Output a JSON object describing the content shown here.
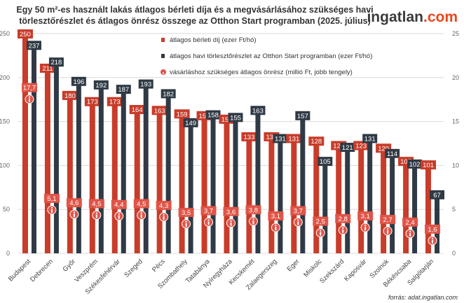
{
  "chart_data": {
    "type": "bar",
    "title_line1": "Egy 50 m²-es használt lakás átlagos bérleti díja és a megvásárlásához szükséges havi",
    "title_line2": "törlesztőrészlet és átlagos önrész összege az Otthon Start programban (2025. július)",
    "brand": {
      "name": "ingatlan",
      "suffix": ".com",
      "color_main": "#3a3a3a",
      "color_accent": "#e8471f"
    },
    "source": "forrás: adat.ingatlan.com",
    "ylim_left": [
      0,
      250
    ],
    "ylim_right": [
      0,
      25
    ],
    "yticks_left": [
      "0",
      "50",
      "100",
      "150",
      "200",
      "250"
    ],
    "yticks_right": [
      "0",
      "5",
      "10",
      "15",
      "20",
      "25"
    ],
    "grid": true,
    "legend_position": "top-right",
    "categories": [
      "Budapest",
      "Debrecen",
      "Győr",
      "Veszprém",
      "Székesfehérvár",
      "Szeged",
      "Pécs",
      "Szombathely",
      "Tatabánya",
      "Nyíregyháza",
      "Kecskemét",
      "Zalaegerszeg",
      "Eger",
      "Miskolc",
      "Szekszárd",
      "Kaposvár",
      "Szolnok",
      "Békéscsaba",
      "Salgótarján"
    ],
    "series": [
      {
        "name": "átlagos bérleti díj (ezer Ft/hó)",
        "axis": "left",
        "color": "#c83c2a",
        "values": [
          250,
          211,
          180,
          173,
          173,
          164,
          163,
          159,
          157,
          153,
          133,
          133,
          131,
          128,
          123,
          123,
          120,
          105,
          101
        ],
        "labels": [
          "250",
          "211",
          "180",
          "173",
          "173",
          "164",
          "163",
          "159",
          "157",
          "153",
          "133",
          "133",
          "131",
          "128",
          "123",
          "123",
          "120",
          "105",
          "101"
        ]
      },
      {
        "name": "átlagos havi törlesztőrészlet az Otthon Start programban (ezer Ft/hó)",
        "axis": "left",
        "color": "#2f3a45",
        "values": [
          237,
          218,
          196,
          192,
          187,
          193,
          182,
          149,
          158,
          155,
          163,
          131,
          157,
          105,
          121,
          131,
          114,
          102,
          67
        ],
        "labels": [
          "237",
          "218",
          "196",
          "192",
          "187",
          "193",
          "182",
          "149",
          "158",
          "155",
          "163",
          "131",
          "157",
          "105",
          "121",
          "131",
          "114",
          "102",
          "67"
        ]
      },
      {
        "name": "vásárláshoz szükséges átlagos önrész (millió Ft, jobb tengely)",
        "axis": "right",
        "color": "#e05548",
        "values": [
          17.7,
          5.1,
          4.6,
          4.5,
          4.4,
          4.5,
          4.3,
          3.5,
          3.7,
          3.6,
          3.8,
          3.1,
          3.7,
          2.5,
          2.8,
          3.1,
          2.7,
          2.4,
          1.6
        ],
        "labels": [
          "17,7",
          "5,1",
          "4,6",
          "4,5",
          "4,4",
          "4,5",
          "4,3",
          "3,5",
          "3,7",
          "3,6",
          "3,8",
          "3,1",
          "3,7",
          "2,5",
          "2,8",
          "3,1",
          "2,7",
          "2,4",
          "1,6"
        ]
      }
    ]
  }
}
